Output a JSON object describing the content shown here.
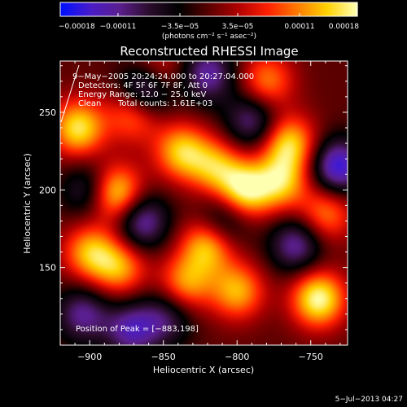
{
  "colors": {
    "background": "#000000",
    "foreground": "#ffffff",
    "palette": [
      "#0010ff",
      "#4a1cc8",
      "#5a1e8c",
      "#2a0c2a",
      "#000000",
      "#5a0000",
      "#b00000",
      "#ff2000",
      "#ff7a00",
      "#ffd000",
      "#ffffb0"
    ]
  },
  "chart_data": {
    "type": "heatmap",
    "title": "Reconstructed RHESSI Image",
    "xlabel": "Heliocentric X (arcsec)",
    "ylabel": "Heliocentric Y (arcsec)",
    "xlim": [
      -920,
      -725
    ],
    "ylim": [
      100,
      283
    ],
    "xticks": [
      -900,
      -850,
      -800,
      -750
    ],
    "xtick_labels": [
      "−900",
      "−850",
      "−800",
      "−750"
    ],
    "yticks": [
      150,
      200,
      250
    ],
    "ytick_labels": [
      "150",
      "200",
      "250"
    ],
    "colorbar": {
      "min": -0.00018,
      "max": 0.00018,
      "ticks": [
        -0.00018,
        -0.00011,
        -3.5e-05,
        3.5e-05,
        0.00011,
        0.00018
      ],
      "tick_labels": [
        "−0.00018",
        "−0.00011",
        "−3.5e−05",
        "3.5e−05",
        "0.00011",
        "0.00018"
      ],
      "units": "(photons cm⁻² s⁻¹ asec⁻²)"
    },
    "annotations": {
      "time_range": "9−May−2005 20:24:24.000 to 20:27:04.000",
      "detectors": "Detectors: 4F 5F 6F 7F 8F, Att 0",
      "energy_range": "Energy Range: 12.0 − 25.0 keV",
      "method": "Clean",
      "counts": "Total counts: 1.61E+03",
      "peak": "Position of Peak = [−883,198]"
    },
    "peaks": [
      {
        "x": -883,
        "y": 198,
        "value": 0.00018
      },
      {
        "x": -908,
        "y": 240,
        "value": 0.00016
      },
      {
        "x": -870,
        "y": 250,
        "value": 0.00012
      },
      {
        "x": -838,
        "y": 225,
        "value": 0.00014
      },
      {
        "x": -815,
        "y": 215,
        "value": 0.00012
      },
      {
        "x": -795,
        "y": 200,
        "value": 0.00017
      },
      {
        "x": -765,
        "y": 230,
        "value": 0.00015
      },
      {
        "x": -770,
        "y": 205,
        "value": 0.00013
      },
      {
        "x": -855,
        "y": 275,
        "value": 0.0001
      },
      {
        "x": -900,
        "y": 160,
        "value": 0.00013
      },
      {
        "x": -880,
        "y": 150,
        "value": 0.00012
      },
      {
        "x": -820,
        "y": 165,
        "value": 0.00015
      },
      {
        "x": -835,
        "y": 140,
        "value": 0.00012
      },
      {
        "x": -800,
        "y": 135,
        "value": 0.00013
      },
      {
        "x": -745,
        "y": 130,
        "value": 0.00018
      },
      {
        "x": -740,
        "y": 185,
        "value": 0.00011
      },
      {
        "x": -780,
        "y": 270,
        "value": 0.00011
      }
    ],
    "troughs": [
      {
        "x": -862,
        "y": 265,
        "value": -0.00018
      },
      {
        "x": -820,
        "y": 275,
        "value": -0.00012
      },
      {
        "x": -865,
        "y": 180,
        "value": -0.00013
      },
      {
        "x": -900,
        "y": 200,
        "value": -0.0001
      },
      {
        "x": -872,
        "y": 110,
        "value": -0.00012
      },
      {
        "x": -810,
        "y": 180,
        "value": -0.0001
      },
      {
        "x": -760,
        "y": 165,
        "value": -0.00012
      },
      {
        "x": -732,
        "y": 215,
        "value": -0.00016
      },
      {
        "x": -790,
        "y": 245,
        "value": -0.00011
      },
      {
        "x": -905,
        "y": 120,
        "value": -0.00011
      },
      {
        "x": -848,
        "y": 118,
        "value": -9e-05
      }
    ]
  },
  "footer": {
    "date": "5−Jul−2013 04:27"
  }
}
